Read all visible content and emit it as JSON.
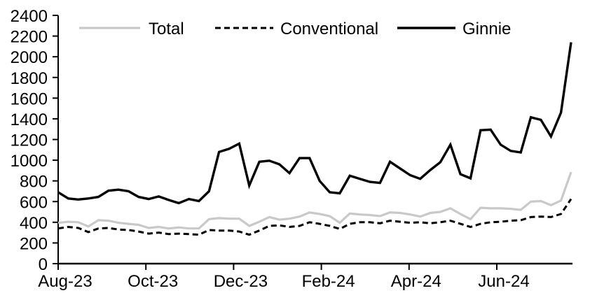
{
  "colors": {
    "background": "#ffffff",
    "axis": "#000000",
    "total_line": "#c9c9c9",
    "conventional_line": "#000000",
    "ginnie_line": "#000000"
  },
  "chart_data": {
    "type": "line",
    "title": "",
    "grid": false,
    "legend_position": "top",
    "x_axis": {
      "tick_labels": [
        "Aug-23",
        "Oct-23",
        "Dec-23",
        "Feb-24",
        "Apr-24",
        "Jun-24"
      ],
      "frequency": "weekly"
    },
    "y_axis": {
      "min": 0,
      "max": 2400,
      "ticks": [
        0,
        200,
        400,
        600,
        800,
        1000,
        1200,
        1400,
        1600,
        1800,
        2000,
        2200,
        2400
      ]
    },
    "series": [
      {
        "name": "Total",
        "color": "#c9c9c9",
        "dash": "",
        "width": 3.2,
        "values": [
          395,
          405,
          400,
          360,
          420,
          415,
          395,
          385,
          375,
          345,
          355,
          340,
          350,
          340,
          340,
          430,
          440,
          435,
          435,
          365,
          405,
          450,
          425,
          435,
          455,
          495,
          480,
          460,
          395,
          485,
          475,
          470,
          460,
          495,
          490,
          475,
          455,
          490,
          500,
          535,
          480,
          430,
          540,
          535,
          535,
          530,
          520,
          600,
          605,
          565,
          610,
          885
        ]
      },
      {
        "name": "Conventional",
        "color": "#000000",
        "dash": "8 5",
        "width": 3,
        "values": [
          340,
          355,
          345,
          305,
          340,
          345,
          330,
          325,
          310,
          290,
          300,
          285,
          290,
          285,
          280,
          325,
          320,
          320,
          310,
          280,
          320,
          365,
          370,
          355,
          365,
          400,
          385,
          365,
          335,
          385,
          400,
          400,
          390,
          415,
          405,
          395,
          400,
          390,
          400,
          415,
          385,
          355,
          385,
          400,
          405,
          415,
          420,
          450,
          455,
          450,
          480,
          625
        ]
      },
      {
        "name": "Ginnie",
        "color": "#000000",
        "dash": "",
        "width": 3.4,
        "values": [
          690,
          630,
          620,
          630,
          645,
          705,
          715,
          700,
          645,
          625,
          650,
          615,
          585,
          625,
          605,
          700,
          1080,
          1110,
          1160,
          755,
          985,
          995,
          960,
          875,
          1020,
          1020,
          800,
          690,
          680,
          850,
          820,
          790,
          780,
          985,
          920,
          855,
          820,
          905,
          980,
          1150,
          865,
          825,
          1290,
          1295,
          1150,
          1090,
          1075,
          1415,
          1390,
          1230,
          1460,
          2140
        ]
      }
    ]
  }
}
